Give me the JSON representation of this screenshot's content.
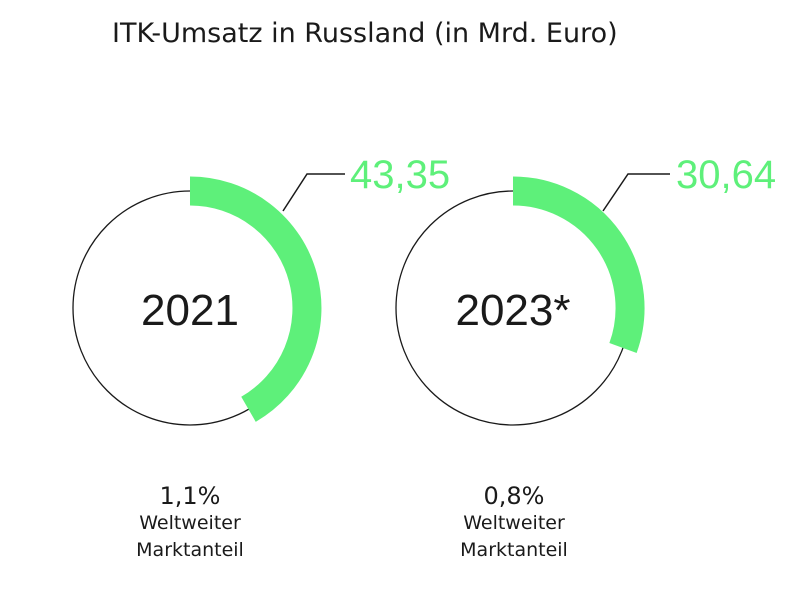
{
  "title": "ITK-Umsatz in Russland (in Mrd. Euro)",
  "colors": {
    "accent": "#5ef07a",
    "outline": "#1a1a1a",
    "text": "#1a1a1a"
  },
  "chart_data": {
    "type": "donut",
    "title": "ITK-Umsatz in Russland (in Mrd. Euro)",
    "items": [
      {
        "year": "2021",
        "value": 43.35,
        "value_label": "43,35",
        "share": "1,1%",
        "share_label_line1": "Weltweiter",
        "share_label_line2": "Marktanteil"
      },
      {
        "year": "2023*",
        "value": 30.64,
        "value_label": "30,64",
        "share": "0,8%",
        "share_label_line1": "Weltweiter",
        "share_label_line2": "Marktanteil"
      }
    ]
  }
}
